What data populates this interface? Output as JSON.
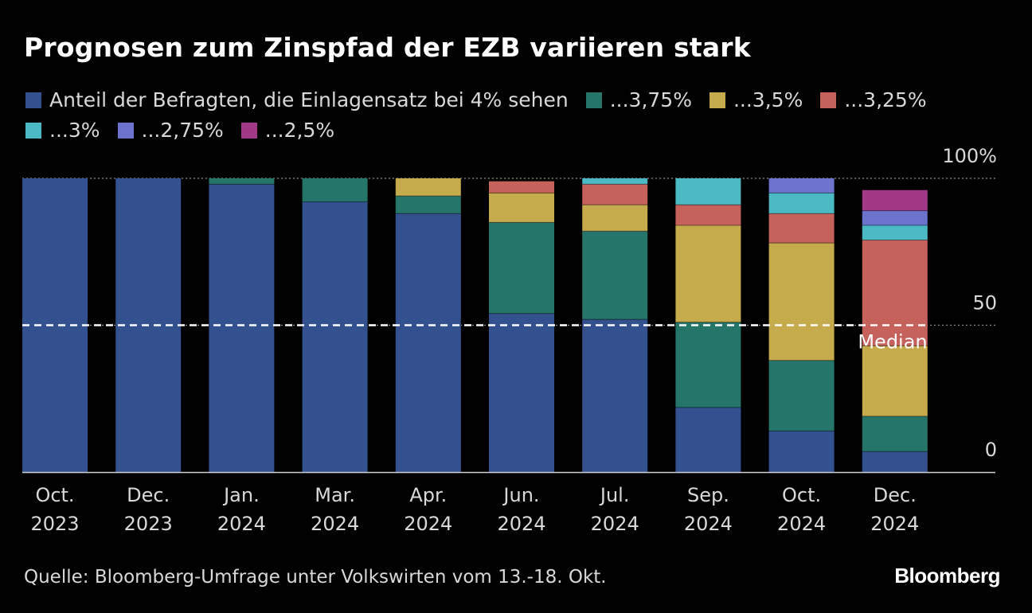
{
  "title": "Prognosen zum Zinspfad der EZB variieren stark",
  "source": "Quelle: Bloomberg-Umfrage unter Volkswirten vom 13.-18. Okt.",
  "brand": "Bloomberg",
  "median_label": "Median",
  "chart_data": {
    "type": "bar",
    "stacked": true,
    "title": "Prognosen zum Zinspfad der EZB variieren stark",
    "categories": [
      [
        "Oct.",
        "2023"
      ],
      [
        "Dec.",
        "2023"
      ],
      [
        "Jan.",
        "2024"
      ],
      [
        "Mar.",
        "2024"
      ],
      [
        "Apr.",
        "2024"
      ],
      [
        "Jun.",
        "2024"
      ],
      [
        "Jul.",
        "2024"
      ],
      [
        "Sep.",
        "2024"
      ],
      [
        "Oct.",
        "2024"
      ],
      [
        "Dec.",
        "2024"
      ]
    ],
    "ylim": [
      0,
      100
    ],
    "yticks": [
      {
        "value": 0,
        "label": "0"
      },
      {
        "value": 50,
        "label": "50"
      },
      {
        "value": 100,
        "label": "100%"
      }
    ],
    "median_value": 50,
    "legend_position": "top",
    "series": [
      {
        "name": "Anteil der Befragten, die Einlagensatz bei 4% sehen",
        "color": "#33508f",
        "values": [
          100,
          100,
          98,
          92,
          88,
          54,
          52,
          22,
          14,
          7
        ]
      },
      {
        "name": "...3,75%",
        "color": "#26756a",
        "values": [
          0,
          0,
          2,
          8,
          6,
          31,
          30,
          29,
          24,
          12
        ]
      },
      {
        "name": "...3,5%",
        "color": "#c6ab4c",
        "values": [
          0,
          0,
          0,
          0,
          6,
          10,
          9,
          33,
          40,
          24
        ]
      },
      {
        "name": "...3,25%",
        "color": "#c6615c",
        "values": [
          0,
          0,
          0,
          0,
          0,
          4,
          7,
          7,
          10,
          36
        ]
      },
      {
        "name": "...3%",
        "color": "#4bbac5",
        "values": [
          0,
          0,
          0,
          0,
          0,
          0,
          2,
          9,
          7,
          5
        ]
      },
      {
        "name": "...2,75%",
        "color": "#6b73cc",
        "values": [
          0,
          0,
          0,
          0,
          0,
          0,
          0,
          0,
          5,
          5
        ]
      },
      {
        "name": "...2,5%",
        "color": "#a13a86",
        "values": [
          0,
          0,
          0,
          0,
          0,
          0,
          0,
          0,
          0,
          7
        ]
      }
    ]
  }
}
